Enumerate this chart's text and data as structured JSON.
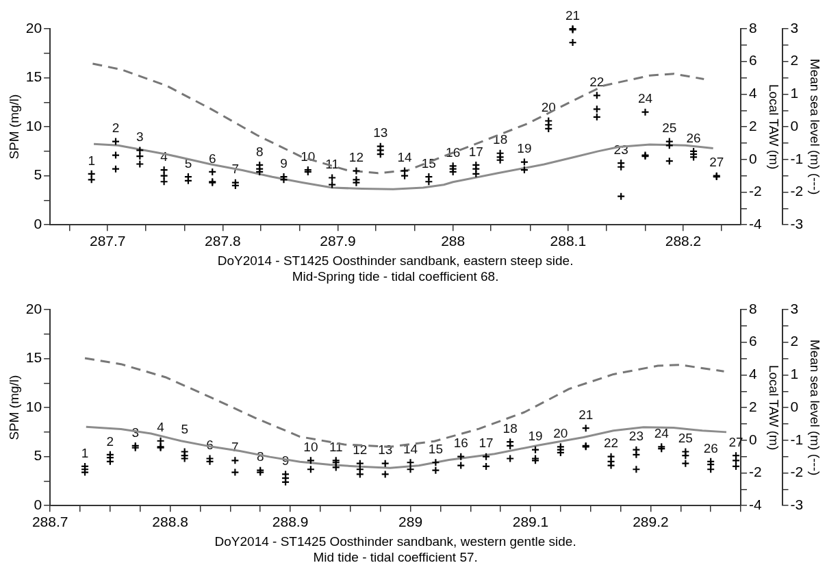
{
  "chart_data": [
    {
      "type": "scatter",
      "xlabel": "DoY2014 - ST1425 Oosthinder sandbank, eastern steep side.\nMid-Spring tide - tidal coefficient 68.",
      "ylabel": "SPM (mg/l)",
      "y2label": "Local TAW (m)",
      "y3label": "Mean sea level (m) (---)",
      "xlim": [
        287.65,
        288.25
      ],
      "xticks": [
        {
          "value": 287.667,
          "label": null
        },
        287.7,
        {
          "value": 287.733,
          "label": null
        },
        {
          "value": 287.767,
          "label": null
        },
        287.8,
        {
          "value": 287.833,
          "label": null
        },
        {
          "value": 287.867,
          "label": null
        },
        287.9,
        {
          "value": 287.933,
          "label": null
        },
        {
          "value": 287.967,
          "label": null
        },
        288,
        {
          "value": 288.033,
          "label": null
        },
        {
          "value": 288.067,
          "label": null
        },
        288.1,
        {
          "value": 288.133,
          "label": null
        },
        {
          "value": 288.167,
          "label": null
        },
        288.2,
        {
          "value": 288.233,
          "label": null
        }
      ],
      "ylim": [
        0,
        20
      ],
      "yticks": [
        0,
        {
          "value": 2.5,
          "label": null
        },
        5,
        {
          "value": 7.5,
          "label": null
        },
        10,
        {
          "value": 12.5,
          "label": null
        },
        15,
        {
          "value": 17.5,
          "label": null
        },
        20
      ],
      "y2lim": [
        -4,
        8
      ],
      "y2ticks": [
        -4,
        {
          "value": -3,
          "label": null
        },
        -2,
        {
          "value": -1,
          "label": null
        },
        0,
        {
          "value": 1,
          "label": null
        },
        2,
        {
          "value": 3,
          "label": null
        },
        4,
        {
          "value": 5,
          "label": null
        },
        6,
        {
          "value": 7,
          "label": null
        },
        8
      ],
      "y3lim": [
        -3,
        3
      ],
      "y3ticks": [
        -3,
        {
          "value": -2.5,
          "label": null
        },
        -2,
        {
          "value": -1.5,
          "label": null
        },
        -1,
        {
          "value": -0.5,
          "label": null
        },
        0,
        {
          "value": 0.5,
          "label": null
        },
        1,
        {
          "value": 1.5,
          "label": null
        },
        2,
        {
          "value": 2.5,
          "label": null
        },
        3
      ],
      "annotations": [
        {
          "text": "1",
          "x": 287.686,
          "y": 5.2
        },
        {
          "text": "2",
          "x": 287.707,
          "y": 8.5
        },
        {
          "text": "3",
          "x": 287.728,
          "y": 7.6
        },
        {
          "text": "4",
          "x": 287.749,
          "y": 5.6
        },
        {
          "text": "5",
          "x": 287.77,
          "y": 4.9
        },
        {
          "text": "6",
          "x": 287.791,
          "y": 5.4
        },
        {
          "text": "7",
          "x": 287.811,
          "y": 4.3
        },
        {
          "text": "8",
          "x": 287.832,
          "y": 6.1
        },
        {
          "text": "9",
          "x": 287.853,
          "y": 4.9
        },
        {
          "text": "10",
          "x": 287.874,
          "y": 5.6
        },
        {
          "text": "11",
          "x": 287.895,
          "y": 4.8
        },
        {
          "text": "12",
          "x": 287.916,
          "y": 5.5
        },
        {
          "text": "13",
          "x": 287.937,
          "y": 8.0
        },
        {
          "text": "14",
          "x": 287.958,
          "y": 5.5
        },
        {
          "text": "15",
          "x": 287.979,
          "y": 4.9
        },
        {
          "text": "16",
          "x": 288.0,
          "y": 6.0
        },
        {
          "text": "17",
          "x": 288.02,
          "y": 6.1
        },
        {
          "text": "18",
          "x": 288.041,
          "y": 7.3
        },
        {
          "text": "19",
          "x": 288.062,
          "y": 6.4
        },
        {
          "text": "20",
          "x": 288.083,
          "y": 10.6
        },
        {
          "text": "21",
          "x": 288.104,
          "y": 20.0
        },
        {
          "text": "22",
          "x": 288.125,
          "y": 13.2
        },
        {
          "text": "23",
          "x": 288.146,
          "y": 6.3
        },
        {
          "text": "24",
          "x": 288.167,
          "y": 11.5
        },
        {
          "text": "25",
          "x": 288.188,
          "y": 8.5
        },
        {
          "text": "26",
          "x": 288.209,
          "y": 7.5
        },
        {
          "text": "27",
          "x": 288.229,
          "y": 5.0
        }
      ],
      "series": [
        {
          "type": "scatter",
          "color": "#000000",
          "marker": "cross",
          "x": [
            287.686,
            287.686,
            287.707,
            287.707,
            287.707,
            287.728,
            287.728,
            287.728,
            287.749,
            287.749,
            287.749,
            287.77,
            287.77,
            287.791,
            287.791,
            287.791,
            287.811,
            287.811,
            287.832,
            287.832,
            287.832,
            287.853,
            287.853,
            287.874,
            287.874,
            287.895,
            287.895,
            287.916,
            287.916,
            287.916,
            287.937,
            287.937,
            287.937,
            287.958,
            287.958,
            287.979,
            287.979,
            288.0,
            288.0,
            288.0,
            288.02,
            288.02,
            288.02,
            288.041,
            288.041,
            288.041,
            288.062,
            288.062,
            288.083,
            288.083,
            288.083,
            288.104,
            288.104,
            288.104,
            288.125,
            288.125,
            288.125,
            288.146,
            288.146,
            288.146,
            288.167,
            288.167,
            288.167,
            288.188,
            288.188,
            288.188,
            288.209,
            288.209,
            288.209,
            288.229,
            288.229
          ],
          "values": [
            5.2,
            4.6,
            8.5,
            7.1,
            5.7,
            7.6,
            7.0,
            6.2,
            5.6,
            5.0,
            4.4,
            4.9,
            4.5,
            5.4,
            4.4,
            4.3,
            4.3,
            4.0,
            6.1,
            5.7,
            5.4,
            4.9,
            4.6,
            5.6,
            5.4,
            4.8,
            4.1,
            5.5,
            4.6,
            4.3,
            8.0,
            7.6,
            7.2,
            5.5,
            5.0,
            4.9,
            4.4,
            6.0,
            5.7,
            5.4,
            6.1,
            5.7,
            5.2,
            7.3,
            6.9,
            6.6,
            6.4,
            5.6,
            10.6,
            10.2,
            9.8,
            20.0,
            19.9,
            18.6,
            13.2,
            11.8,
            11.0,
            6.3,
            5.9,
            2.9,
            11.5,
            7.1,
            7.0,
            8.5,
            8.1,
            6.5,
            7.5,
            7.2,
            6.9,
            5.0,
            4.9
          ]
        },
        {
          "type": "line",
          "axis": "y2",
          "color": "#8c8c8c",
          "marker": "none",
          "line_style": "solid",
          "x": [
            287.688,
            287.709,
            287.751,
            287.79,
            287.817,
            287.843,
            287.869,
            287.895,
            287.921,
            287.948,
            287.974,
            287.992,
            288.0,
            288.039,
            288.079,
            288.105,
            288.126,
            288.144,
            288.171,
            288.202,
            288.226
          ],
          "values": [
            0.95,
            0.86,
            0.32,
            -0.3,
            -0.66,
            -1.07,
            -1.41,
            -1.73,
            -1.79,
            -1.82,
            -1.73,
            -1.55,
            -1.38,
            -0.84,
            -0.3,
            0.14,
            0.5,
            0.77,
            0.91,
            0.86,
            0.68
          ]
        },
        {
          "type": "line",
          "axis": "y3",
          "color": "#777777",
          "marker": "none",
          "line_style": "dashed",
          "x": [
            287.687,
            287.712,
            287.751,
            287.79,
            287.83,
            287.869,
            287.908,
            287.935,
            287.961,
            287.987,
            288.026,
            288.065,
            288.105,
            288.131,
            288.171,
            288.192,
            288.218
          ],
          "values": [
            1.93,
            1.75,
            1.26,
            0.54,
            -0.26,
            -0.93,
            -1.33,
            -1.42,
            -1.33,
            -0.97,
            -0.44,
            0.1,
            0.81,
            1.26,
            1.57,
            1.62,
            1.46
          ]
        }
      ]
    },
    {
      "type": "scatter",
      "xlabel": "DoY2014 - ST1425 Oosthinder sandbank, western gentle side.\nMid tide - tidal coefficient 57.",
      "ylabel": "SPM (mg/l)",
      "y2label": "Local TAW (m)",
      "y3label": "Mean sea level (m) (---)",
      "xlim": [
        288.7,
        289.275
      ],
      "xticks": [
        288.7,
        {
          "value": 288.725,
          "label": null
        },
        {
          "value": 288.75,
          "label": null
        },
        {
          "value": 288.775,
          "label": null
        },
        288.8,
        {
          "value": 288.825,
          "label": null
        },
        {
          "value": 288.85,
          "label": null
        },
        {
          "value": 288.875,
          "label": null
        },
        288.9,
        {
          "value": 288.925,
          "label": null
        },
        {
          "value": 288.95,
          "label": null
        },
        {
          "value": 288.975,
          "label": null
        },
        289,
        {
          "value": 289.025,
          "label": null
        },
        {
          "value": 289.05,
          "label": null
        },
        {
          "value": 289.075,
          "label": null
        },
        289.1,
        {
          "value": 289.125,
          "label": null
        },
        {
          "value": 289.15,
          "label": null
        },
        {
          "value": 289.175,
          "label": null
        },
        289.2,
        {
          "value": 289.225,
          "label": null
        },
        {
          "value": 289.25,
          "label": null
        },
        {
          "value": 289.275,
          "label": null
        }
      ],
      "ylim": [
        0,
        20
      ],
      "yticks": [
        0,
        {
          "value": 2.5,
          "label": null
        },
        5,
        {
          "value": 7.5,
          "label": null
        },
        10,
        {
          "value": 12.5,
          "label": null
        },
        15,
        {
          "value": 17.5,
          "label": null
        },
        20
      ],
      "y2lim": [
        -4,
        8
      ],
      "y2ticks": [
        -4,
        {
          "value": -3,
          "label": null
        },
        -2,
        {
          "value": -1,
          "label": null
        },
        0,
        {
          "value": 1,
          "label": null
        },
        2,
        {
          "value": 3,
          "label": null
        },
        4,
        {
          "value": 5,
          "label": null
        },
        6,
        {
          "value": 7,
          "label": null
        },
        8
      ],
      "y3lim": [
        -3,
        3
      ],
      "y3ticks": [
        -3,
        {
          "value": -2.5,
          "label": null
        },
        -2,
        {
          "value": -1.5,
          "label": null
        },
        -1,
        {
          "value": -0.5,
          "label": null
        },
        0,
        {
          "value": 0.5,
          "label": null
        },
        1,
        {
          "value": 1.5,
          "label": null
        },
        2,
        {
          "value": 2.5,
          "label": null
        },
        3
      ],
      "annotations": [
        {
          "text": "1",
          "x": 288.729,
          "y": 4.0
        },
        {
          "text": "2",
          "x": 288.75,
          "y": 5.2
        },
        {
          "text": "3",
          "x": 288.771,
          "y": 6.1
        },
        {
          "text": "4",
          "x": 288.792,
          "y": 6.6
        },
        {
          "text": "5",
          "x": 288.812,
          "y": 6.4
        },
        {
          "text": "6",
          "x": 288.833,
          "y": 4.8
        },
        {
          "text": "7",
          "x": 288.854,
          "y": 4.6
        },
        {
          "text": "8",
          "x": 288.875,
          "y": 3.6
        },
        {
          "text": "9",
          "x": 288.896,
          "y": 3.2
        },
        {
          "text": "10",
          "x": 288.917,
          "y": 4.6
        },
        {
          "text": "11",
          "x": 288.938,
          "y": 4.6
        },
        {
          "text": "12",
          "x": 288.958,
          "y": 4.3
        },
        {
          "text": "13",
          "x": 288.979,
          "y": 4.3
        },
        {
          "text": "14",
          "x": 289.0,
          "y": 4.4
        },
        {
          "text": "15",
          "x": 289.021,
          "y": 4.4
        },
        {
          "text": "16",
          "x": 289.042,
          "y": 5.0
        },
        {
          "text": "17",
          "x": 289.063,
          "y": 5.0
        },
        {
          "text": "18",
          "x": 289.083,
          "y": 6.5
        },
        {
          "text": "19",
          "x": 289.104,
          "y": 5.7
        },
        {
          "text": "20",
          "x": 289.125,
          "y": 6.0
        },
        {
          "text": "21",
          "x": 289.146,
          "y": 7.9
        },
        {
          "text": "22",
          "x": 289.167,
          "y": 5.0
        },
        {
          "text": "23",
          "x": 289.188,
          "y": 5.7
        },
        {
          "text": "24",
          "x": 289.209,
          "y": 6.0
        },
        {
          "text": "25",
          "x": 289.229,
          "y": 5.5
        },
        {
          "text": "26",
          "x": 289.25,
          "y": 4.5
        },
        {
          "text": "27",
          "x": 289.271,
          "y": 5.1
        }
      ],
      "series": [
        {
          "type": "scatter",
          "color": "#000000",
          "marker": "cross",
          "x": [
            288.729,
            288.729,
            288.729,
            288.75,
            288.75,
            288.75,
            288.771,
            288.771,
            288.792,
            288.792,
            288.792,
            288.812,
            288.812,
            288.812,
            288.833,
            288.833,
            288.854,
            288.854,
            288.875,
            288.875,
            288.896,
            288.896,
            288.896,
            288.917,
            288.917,
            288.938,
            288.938,
            288.938,
            288.958,
            288.958,
            288.958,
            288.979,
            288.979,
            289.0,
            289.0,
            289.021,
            289.021,
            289.042,
            289.042,
            289.063,
            289.063,
            289.083,
            289.083,
            289.083,
            289.104,
            289.104,
            289.104,
            289.125,
            289.125,
            289.125,
            289.146,
            289.146,
            289.146,
            289.167,
            289.167,
            289.167,
            289.188,
            289.188,
            289.188,
            289.209,
            289.209,
            289.229,
            289.229,
            289.229,
            289.25,
            289.25,
            289.25,
            289.271,
            289.271,
            289.271
          ],
          "values": [
            4.0,
            3.7,
            3.4,
            5.2,
            4.9,
            4.5,
            6.1,
            5.9,
            6.6,
            6.0,
            5.9,
            5.5,
            5.1,
            4.8,
            4.8,
            4.5,
            4.6,
            3.4,
            3.6,
            3.4,
            3.2,
            2.8,
            2.4,
            4.6,
            3.7,
            4.6,
            4.4,
            3.9,
            4.3,
            3.7,
            3.2,
            4.3,
            3.2,
            4.4,
            3.7,
            4.4,
            3.6,
            5.0,
            4.1,
            5.0,
            4.0,
            6.5,
            6.1,
            4.8,
            5.7,
            4.8,
            4.6,
            6.0,
            5.7,
            5.4,
            7.9,
            6.1,
            6.0,
            5.0,
            4.5,
            4.1,
            5.7,
            5.2,
            3.7,
            6.0,
            5.8,
            5.5,
            5.1,
            4.3,
            4.5,
            4.2,
            3.7,
            5.1,
            4.6,
            4.0
          ]
        },
        {
          "type": "line",
          "axis": "y2",
          "color": "#8c8c8c",
          "marker": "none",
          "line_style": "solid",
          "x": [
            288.73,
            288.759,
            288.784,
            288.809,
            288.834,
            288.858,
            288.883,
            288.908,
            288.933,
            288.958,
            288.983,
            289.007,
            289.032,
            289.07,
            289.107,
            289.144,
            289.169,
            289.194,
            289.219,
            289.243,
            289.263
          ],
          "values": [
            0.82,
            0.68,
            0.41,
            -0.04,
            -0.39,
            -0.66,
            -1.02,
            -1.32,
            -1.5,
            -1.61,
            -1.7,
            -1.55,
            -1.2,
            -0.84,
            -0.3,
            0.18,
            0.59,
            0.8,
            0.77,
            0.59,
            0.5
          ]
        },
        {
          "type": "line",
          "axis": "y3",
          "color": "#777777",
          "marker": "none",
          "line_style": "dashed",
          "x": [
            288.729,
            288.759,
            288.796,
            288.834,
            288.871,
            288.908,
            288.945,
            288.983,
            289.02,
            289.057,
            289.095,
            289.132,
            289.169,
            289.206,
            289.224,
            289.261
          ],
          "values": [
            1.51,
            1.33,
            0.93,
            0.31,
            -0.32,
            -0.89,
            -1.13,
            -1.2,
            -1.03,
            -0.65,
            -0.14,
            0.57,
            1.02,
            1.28,
            1.31,
            1.11
          ]
        }
      ]
    }
  ]
}
